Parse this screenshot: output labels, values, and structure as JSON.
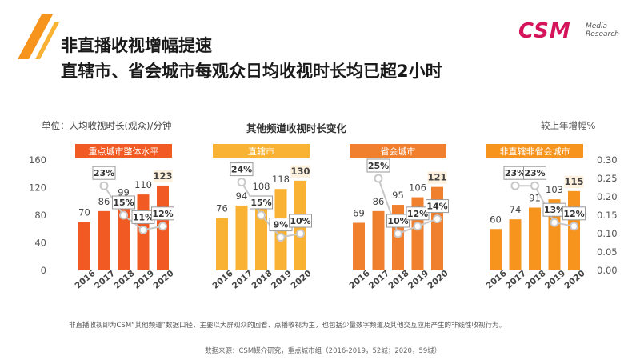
{
  "header": {
    "title_line1": "非直播收视增幅提速",
    "title_line2": "直辖市、省会城市每观众日均收视时长均已超2小时"
  },
  "logo": {
    "name": "CSM",
    "sub1": "Media",
    "sub2": "Research",
    "color": "#d4145a"
  },
  "colors": {
    "accent_dark": "#f15a22",
    "accent_orange": "#f7941d",
    "accent_yellow": "#f9b233"
  },
  "chart_data": {
    "type": "bar",
    "title": "其他频道收视时长变化",
    "ylabel": "单位：人均收视时长(观众)/分钟",
    "y2label": "较上年增幅%",
    "ylim": [
      0,
      160
    ],
    "y2lim": [
      0,
      0.3
    ],
    "yticks": [
      "0",
      "40",
      "80",
      "120",
      "160"
    ],
    "y2ticks": [
      "0.00",
      "0.05",
      "0.10",
      "0.15",
      "0.20",
      "0.25",
      "0.30"
    ],
    "categories": [
      "2016",
      "2017",
      "2018",
      "2019",
      "2020"
    ],
    "groups": [
      {
        "name": "重点城市整体水平",
        "color": "#f15a22",
        "values": [
          70,
          86,
          99,
          110,
          123
        ],
        "growth": [
          null,
          0.23,
          0.15,
          0.11,
          0.12
        ],
        "growth_labels": [
          "",
          "23%",
          "15%",
          "11%",
          "12%"
        ]
      },
      {
        "name": "直辖市",
        "color": "#f9b233",
        "values": [
          76,
          94,
          108,
          118,
          130
        ],
        "growth": [
          null,
          0.24,
          0.15,
          0.09,
          0.1
        ],
        "growth_labels": [
          "",
          "24%",
          "15%",
          "9%",
          "10%"
        ]
      },
      {
        "name": "省会城市",
        "color": "#f07f2e",
        "values": [
          69,
          86,
          95,
          106,
          121
        ],
        "growth": [
          null,
          0.25,
          0.1,
          0.12,
          0.14
        ],
        "growth_labels": [
          "",
          "25%",
          "10%",
          "12%",
          "14%"
        ]
      },
      {
        "name": "非直辖非省会城市",
        "color": "#f7941d",
        "values": [
          60,
          74,
          91,
          103,
          115
        ],
        "growth": [
          null,
          0.23,
          0.23,
          0.13,
          0.12
        ],
        "growth_labels": [
          "",
          "23%",
          "23%",
          "13%",
          "12%"
        ]
      }
    ]
  },
  "footer": {
    "note": "非直播收视即为CSM“其他频道”数据口径，主要以大屏观众的回看、点播收视为主，也包括少量数字频道及其他交互应用产生的非线性收视行为。",
    "source": "数据来源：CSM媒介研究，重点城市组（2016-2019，52城；2020，59城）"
  }
}
